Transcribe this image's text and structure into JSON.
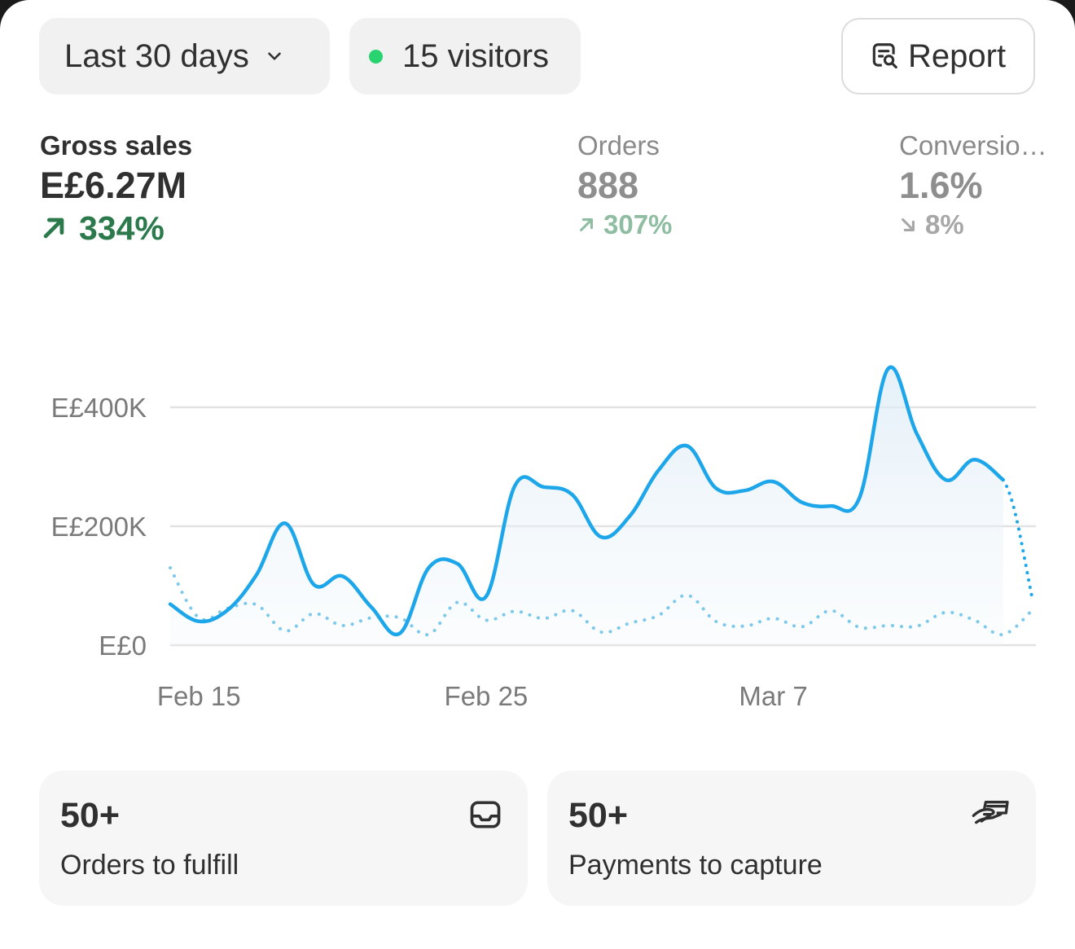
{
  "filters": {
    "date_range": "Last 30 days",
    "visitors": "15 visitors",
    "report_button": "Report"
  },
  "metrics": [
    {
      "label": "Gross sales",
      "value": "E£6.27M",
      "change": "334%",
      "direction": "up",
      "selected": true
    },
    {
      "label": "Orders",
      "value": "888",
      "change": "307%",
      "direction": "up",
      "selected": false
    },
    {
      "label": "Conversio…",
      "value": "1.6%",
      "change": "8%",
      "direction": "down",
      "selected": false
    }
  ],
  "chart_data": {
    "type": "line",
    "y_tick_labels": [
      "E£400K",
      "E£200K",
      "E£0"
    ],
    "y_ticks": [
      400000,
      200000,
      0
    ],
    "ylim": [
      0,
      400000
    ],
    "x_tick_labels": [
      "Feb 15",
      "Feb 25",
      "Mar 7"
    ],
    "grid": true,
    "series": [
      {
        "role": "current",
        "color": "#1da7ea",
        "points": [
          [
            "Feb 14",
            69000
          ],
          [
            "Feb 15",
            40000
          ],
          [
            "Feb 16",
            59000
          ],
          [
            "Feb 17",
            118000
          ],
          [
            "Feb 18",
            205000
          ],
          [
            "Feb 19",
            102000
          ],
          [
            "Feb 20",
            116000
          ],
          [
            "Feb 21",
            64000
          ],
          [
            "Feb 22",
            20000
          ],
          [
            "Feb 23",
            130000
          ],
          [
            "Feb 24",
            137000
          ],
          [
            "Feb 25",
            82000
          ],
          [
            "Feb 26",
            268000
          ],
          [
            "Feb 27",
            266000
          ],
          [
            "Feb 28",
            253000
          ],
          [
            "Mar 1",
            182000
          ],
          [
            "Mar 2",
            217000
          ],
          [
            "Mar 3",
            294000
          ],
          [
            "Mar 4",
            335000
          ],
          [
            "Mar 5",
            264000
          ],
          [
            "Mar 6",
            260000
          ],
          [
            "Mar 7",
            275000
          ],
          [
            "Mar 8",
            240000
          ],
          [
            "Mar 9",
            234000
          ],
          [
            "Mar 10",
            248000
          ],
          [
            "Mar 11",
            465000
          ],
          [
            "Mar 12",
            355000
          ],
          [
            "Mar 13",
            278000
          ],
          [
            "Mar 14",
            312000
          ],
          [
            "Mar 15",
            278000
          ],
          [
            "Mar 16",
            82000
          ]
        ],
        "last_segment_dotted": true
      },
      {
        "role": "comparison",
        "color": "#7cc9ec",
        "style": "dotted",
        "points": [
          [
            "Feb 14",
            130000
          ],
          [
            "Feb 15",
            46000
          ],
          [
            "Feb 16",
            62000
          ],
          [
            "Feb 17",
            68000
          ],
          [
            "Feb 18",
            24000
          ],
          [
            "Feb 19",
            53000
          ],
          [
            "Feb 20",
            33000
          ],
          [
            "Feb 21",
            46000
          ],
          [
            "Feb 22",
            46000
          ],
          [
            "Feb 23",
            18000
          ],
          [
            "Feb 24",
            72000
          ],
          [
            "Feb 25",
            42000
          ],
          [
            "Feb 26",
            57000
          ],
          [
            "Feb 27",
            45000
          ],
          [
            "Feb 28",
            58000
          ],
          [
            "Mar 1",
            22000
          ],
          [
            "Mar 2",
            37000
          ],
          [
            "Mar 3",
            50000
          ],
          [
            "Mar 4",
            84000
          ],
          [
            "Mar 5",
            40000
          ],
          [
            "Mar 6",
            32000
          ],
          [
            "Mar 7",
            45000
          ],
          [
            "Mar 8",
            31000
          ],
          [
            "Mar 9",
            58000
          ],
          [
            "Mar 10",
            30000
          ],
          [
            "Mar 11",
            33000
          ],
          [
            "Mar 12",
            32000
          ],
          [
            "Mar 13",
            55000
          ],
          [
            "Mar 14",
            42000
          ],
          [
            "Mar 15",
            18000
          ],
          [
            "Mar 16",
            58000
          ]
        ]
      }
    ]
  },
  "tiles": [
    {
      "count": "50+",
      "label": "Orders to fulfill",
      "icon": "inbox-icon"
    },
    {
      "count": "50+",
      "label": "Payments to capture",
      "icon": "hand-payment-icon"
    }
  ]
}
